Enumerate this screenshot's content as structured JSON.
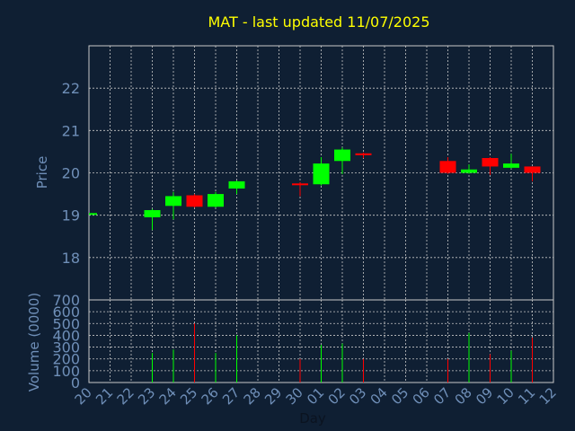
{
  "chart_data": {
    "type": "candlestick",
    "title": "MAT - last updated 11/07/2025",
    "xlabel": "Day",
    "price_panel": {
      "ylabel": "Price",
      "ylim": [
        17.0,
        23.0
      ],
      "yticks": [
        18,
        19,
        20,
        21,
        22
      ]
    },
    "volume_panel": {
      "ylabel": "Volume (0000)",
      "ylim": [
        0,
        700
      ],
      "yticks": [
        0,
        100,
        200,
        300,
        400,
        500,
        600,
        700
      ]
    },
    "x_ticks": [
      "20",
      "21",
      "22",
      "23",
      "24",
      "25",
      "26",
      "27",
      "28",
      "29",
      "30",
      "01",
      "02",
      "03",
      "04",
      "05",
      "06",
      "07",
      "08",
      "09",
      "10",
      "11",
      "12"
    ],
    "grid": true,
    "colors": {
      "up": "#00ff00",
      "down": "#ff0000",
      "grid": "#c8c8c8",
      "frame": "#c8c8c8"
    },
    "candles": [
      {
        "day": "20",
        "open": 19.05,
        "close": 19.05,
        "high": 19.05,
        "low": 19.05,
        "volume": 0
      },
      {
        "day": "23",
        "open": 18.95,
        "close": 19.12,
        "high": 19.15,
        "low": 18.65,
        "volume": 250
      },
      {
        "day": "24",
        "open": 19.22,
        "close": 19.45,
        "high": 19.55,
        "low": 18.9,
        "volume": 280
      },
      {
        "day": "25",
        "open": 19.47,
        "close": 19.2,
        "high": 19.5,
        "low": 19.18,
        "volume": 500
      },
      {
        "day": "26",
        "open": 19.2,
        "close": 19.5,
        "high": 19.55,
        "low": 19.18,
        "volume": 250
      },
      {
        "day": "27",
        "open": 19.63,
        "close": 19.8,
        "high": 19.82,
        "low": 19.5,
        "volume": 400
      },
      {
        "day": "30",
        "open": 19.75,
        "close": 19.73,
        "high": 19.78,
        "low": 19.45,
        "volume": 200
      },
      {
        "day": "01",
        "open": 19.73,
        "close": 20.22,
        "high": 20.37,
        "low": 19.7,
        "volume": 320
      },
      {
        "day": "02",
        "open": 20.28,
        "close": 20.55,
        "high": 20.6,
        "low": 19.97,
        "volume": 330
      },
      {
        "day": "03",
        "open": 20.46,
        "close": 20.42,
        "high": 20.48,
        "low": 20.35,
        "volume": 200
      },
      {
        "day": "07",
        "open": 20.28,
        "close": 20.0,
        "high": 20.37,
        "low": 19.98,
        "volume": 200
      },
      {
        "day": "08",
        "open": 20.0,
        "close": 20.08,
        "high": 20.2,
        "low": 19.98,
        "volume": 420
      },
      {
        "day": "09",
        "open": 20.35,
        "close": 20.15,
        "high": 20.37,
        "low": 19.95,
        "volume": 240
      },
      {
        "day": "10",
        "open": 20.12,
        "close": 20.22,
        "high": 20.45,
        "low": 20.1,
        "volume": 270
      },
      {
        "day": "11",
        "open": 20.15,
        "close": 20.0,
        "high": 20.15,
        "low": 19.8,
        "volume": 380
      }
    ]
  }
}
